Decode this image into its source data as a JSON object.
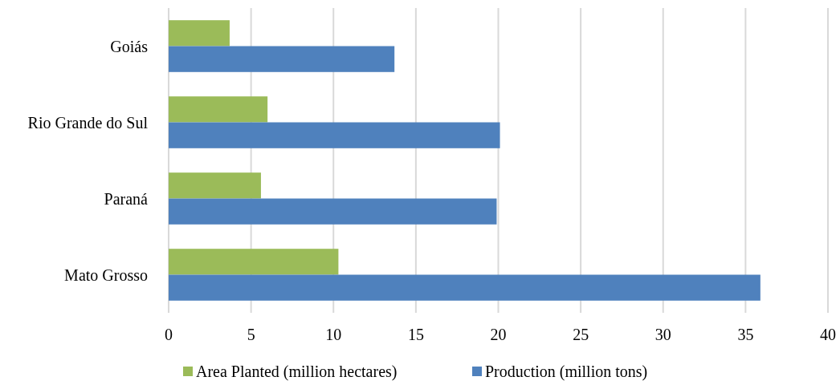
{
  "chart_data": {
    "type": "bar",
    "orientation": "horizontal",
    "categories": [
      "Goiás",
      "Rio Grande do Sul",
      "Paraná",
      "Mato Grosso"
    ],
    "series": [
      {
        "name": "Area Planted (million hectares)",
        "color": "#9bbb59",
        "values": [
          3.7,
          6.0,
          5.6,
          10.3
        ]
      },
      {
        "name": "Production (million tons)",
        "color": "#4f81bd",
        "values": [
          13.7,
          20.1,
          19.9,
          35.9
        ]
      }
    ],
    "xlim": [
      0,
      40
    ],
    "xticks": [
      0,
      5,
      10,
      15,
      20,
      25,
      30,
      35,
      40
    ],
    "grid": "x",
    "legend": "bottom"
  }
}
